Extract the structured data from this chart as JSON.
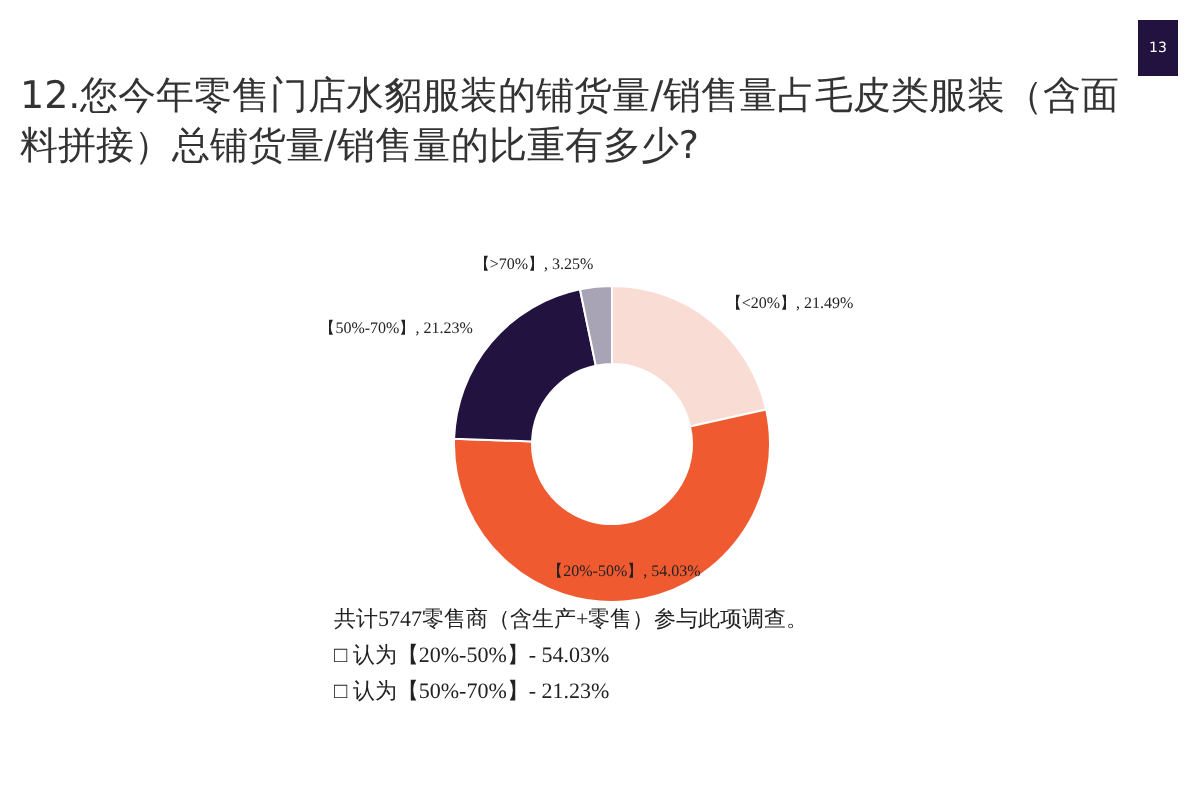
{
  "chart_data": {
    "type": "donut",
    "title": "12.您今年零售门店水貂服装的铺货量/销售量占毛皮类服装（含面料拼接）总铺货量/销售量的比重有多少?",
    "categories": [
      "【<20%】",
      "【20%-50%】",
      "【50%-70%】",
      "【>70%】"
    ],
    "values": [
      21.49,
      54.03,
      21.23,
      3.25
    ],
    "value_labels": [
      "21.49%",
      "54.03%",
      "21.23%",
      "3.25%"
    ],
    "colors": [
      "#f9ddd4",
      "#ef5a31",
      "#22123f",
      "#a8a3b5"
    ],
    "annotations": [
      "13",
      "共计5747零售商（含生产+零售）参与此项调查。",
      "□ 认为【20%-50%】- 54.03%",
      "□ 认为【50%-70%】- 21.23%"
    ]
  }
}
